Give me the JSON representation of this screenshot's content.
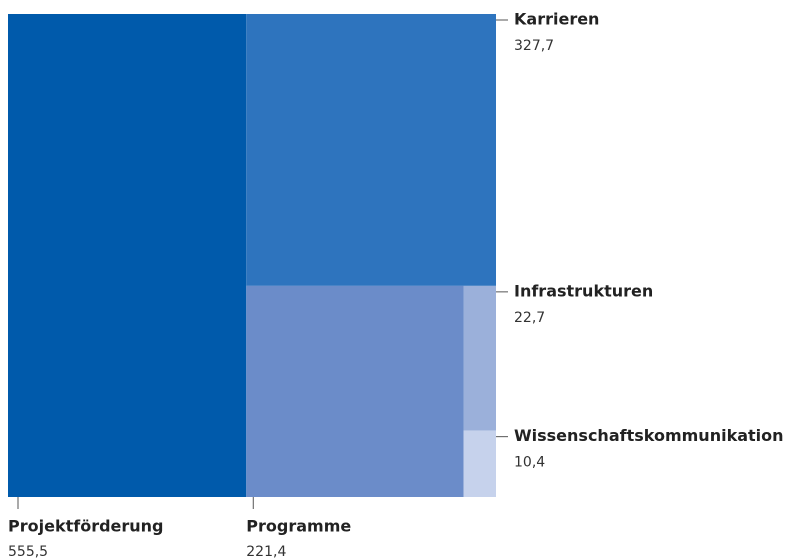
{
  "chart_data": {
    "type": "treemap",
    "categories": [
      "Projektförderung",
      "Karrieren",
      "Programme",
      "Infrastrukturen",
      "Wissenschaftskommunikation"
    ],
    "values": [
      555.5,
      327.7,
      221.4,
      22.7,
      10.4
    ],
    "value_labels": [
      "555,5",
      "327,7",
      "221,4",
      "22,7",
      "10,4"
    ],
    "colors": [
      "#005aab",
      "#2e74be",
      "#6b8cc9",
      "#9bb0da",
      "#c6d2ec"
    ]
  }
}
